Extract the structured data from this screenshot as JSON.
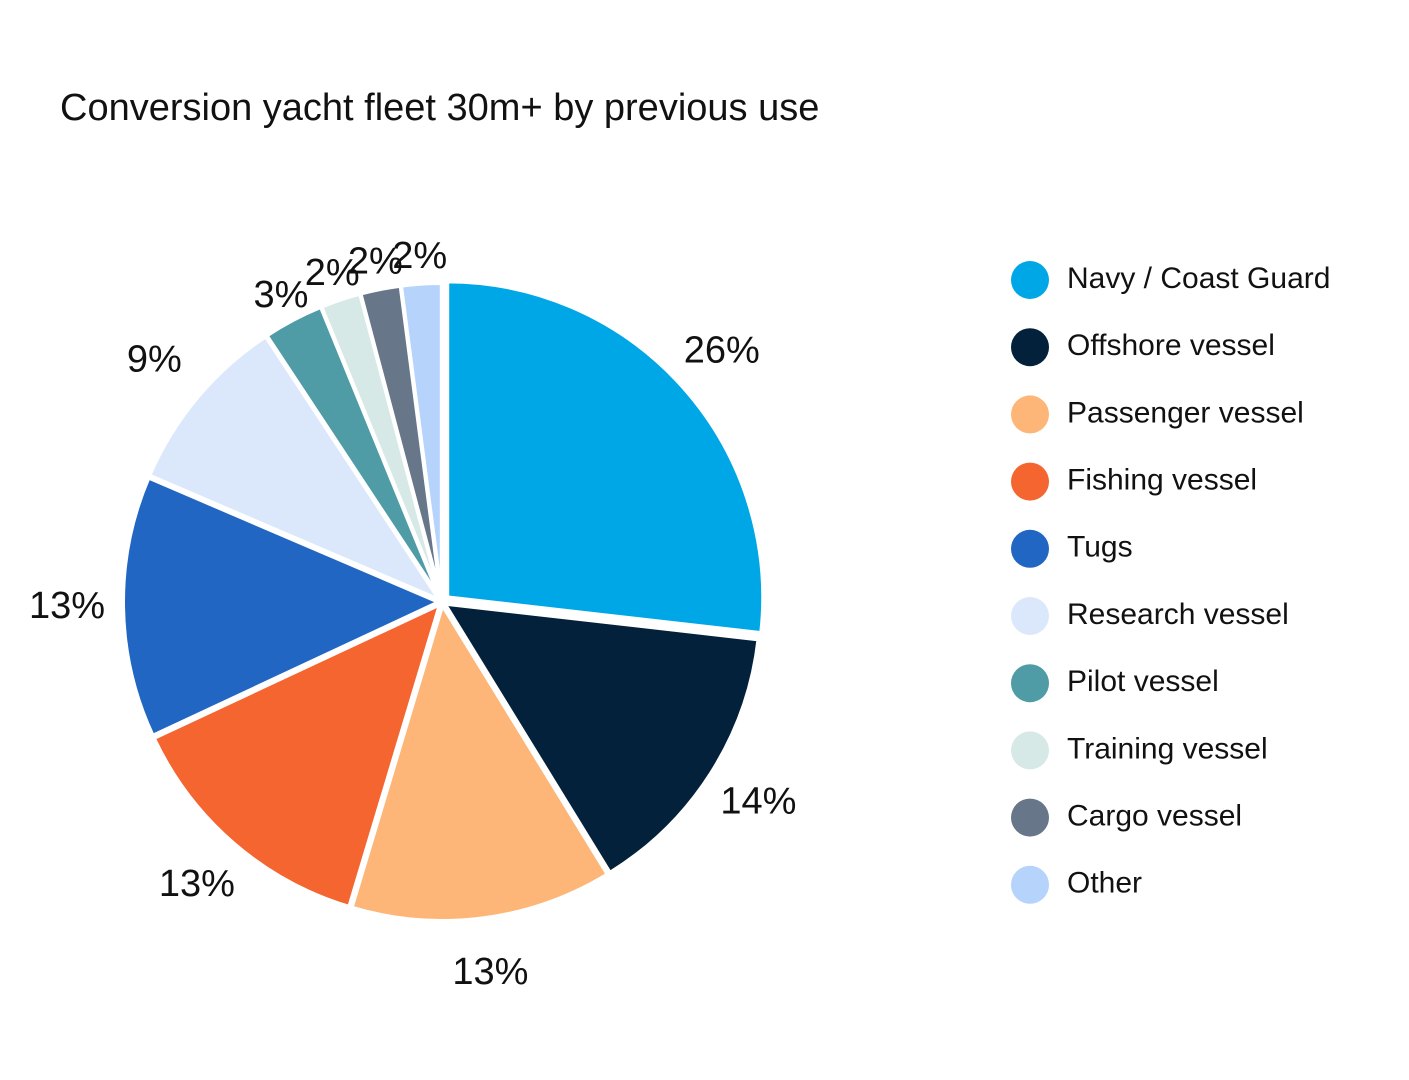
{
  "chart_data": {
    "type": "pie",
    "title": "Conversion yacht fleet 30m+ by previous use",
    "categories": [
      "Navy / Coast Guard",
      "Offshore vessel",
      "Passenger vessel",
      "Fishing vessel",
      "Tugs",
      "Research vessel",
      "Pilot vessel",
      "Training vessel",
      "Cargo vessel",
      "Other"
    ],
    "values": [
      26,
      14,
      13,
      13,
      13,
      9,
      3,
      2,
      2,
      2
    ],
    "value_labels": [
      "26%",
      "14%",
      "13%",
      "13%",
      "13%",
      "9%",
      "3%",
      "2%",
      "2%",
      "2%"
    ],
    "colors": [
      "#00a7e6",
      "#03213b",
      "#fdb677",
      "#f46530",
      "#2166c2",
      "#dbe8fb",
      "#4f9ba6",
      "#d6e9e7",
      "#677789",
      "#b6d3fb"
    ],
    "legend": "right"
  }
}
